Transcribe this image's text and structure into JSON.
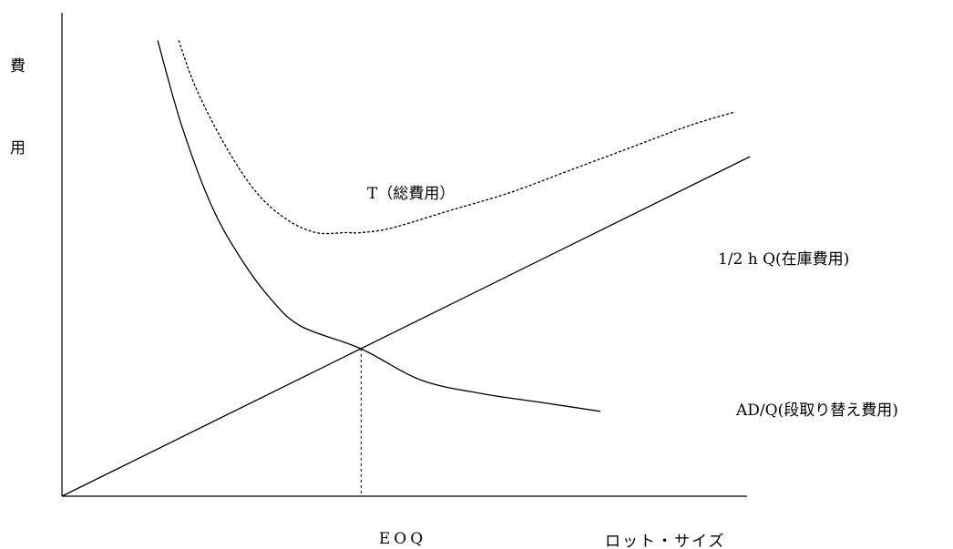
{
  "chart_data": {
    "type": "line",
    "title": "",
    "ylabel_chars": [
      "費",
      "用"
    ],
    "xlabel": "ロット・サイズ",
    "marker_label": "EOQ",
    "series": [
      {
        "name": "T（総費用）",
        "style": "dashed",
        "points": [
          [
            0.39,
            1.02
          ],
          [
            0.45,
            0.91
          ],
          [
            0.55,
            0.78
          ],
          [
            0.65,
            0.68
          ],
          [
            0.75,
            0.62
          ],
          [
            0.85,
            0.59
          ],
          [
            0.95,
            0.59
          ],
          [
            1.0,
            0.59
          ],
          [
            1.1,
            0.6
          ],
          [
            1.3,
            0.64
          ],
          [
            1.5,
            0.68
          ],
          [
            1.7,
            0.73
          ],
          [
            1.9,
            0.78
          ],
          [
            2.1,
            0.83
          ],
          [
            2.25,
            0.86
          ]
        ]
      },
      {
        "name": "1/2 h Q(在庫費用)",
        "style": "solid",
        "points": [
          [
            0,
            0
          ],
          [
            2.3,
            0.76
          ]
        ]
      },
      {
        "name": "AD/Q(段取り替え費用)",
        "style": "solid",
        "points": [
          [
            0.32,
            1.02
          ],
          [
            0.4,
            0.83
          ],
          [
            0.5,
            0.65
          ],
          [
            0.6,
            0.53
          ],
          [
            0.7,
            0.44
          ],
          [
            0.8,
            0.38
          ],
          [
            1.0,
            0.33
          ],
          [
            1.2,
            0.26
          ],
          [
            1.4,
            0.23
          ],
          [
            1.6,
            0.21
          ],
          [
            1.8,
            0.19
          ]
        ]
      }
    ],
    "eoq_x": 1.0,
    "xlim": [
      0,
      2.4
    ],
    "ylim": [
      0,
      1.08
    ],
    "colors": {
      "line": "#000000",
      "background": "#ffffff"
    }
  }
}
